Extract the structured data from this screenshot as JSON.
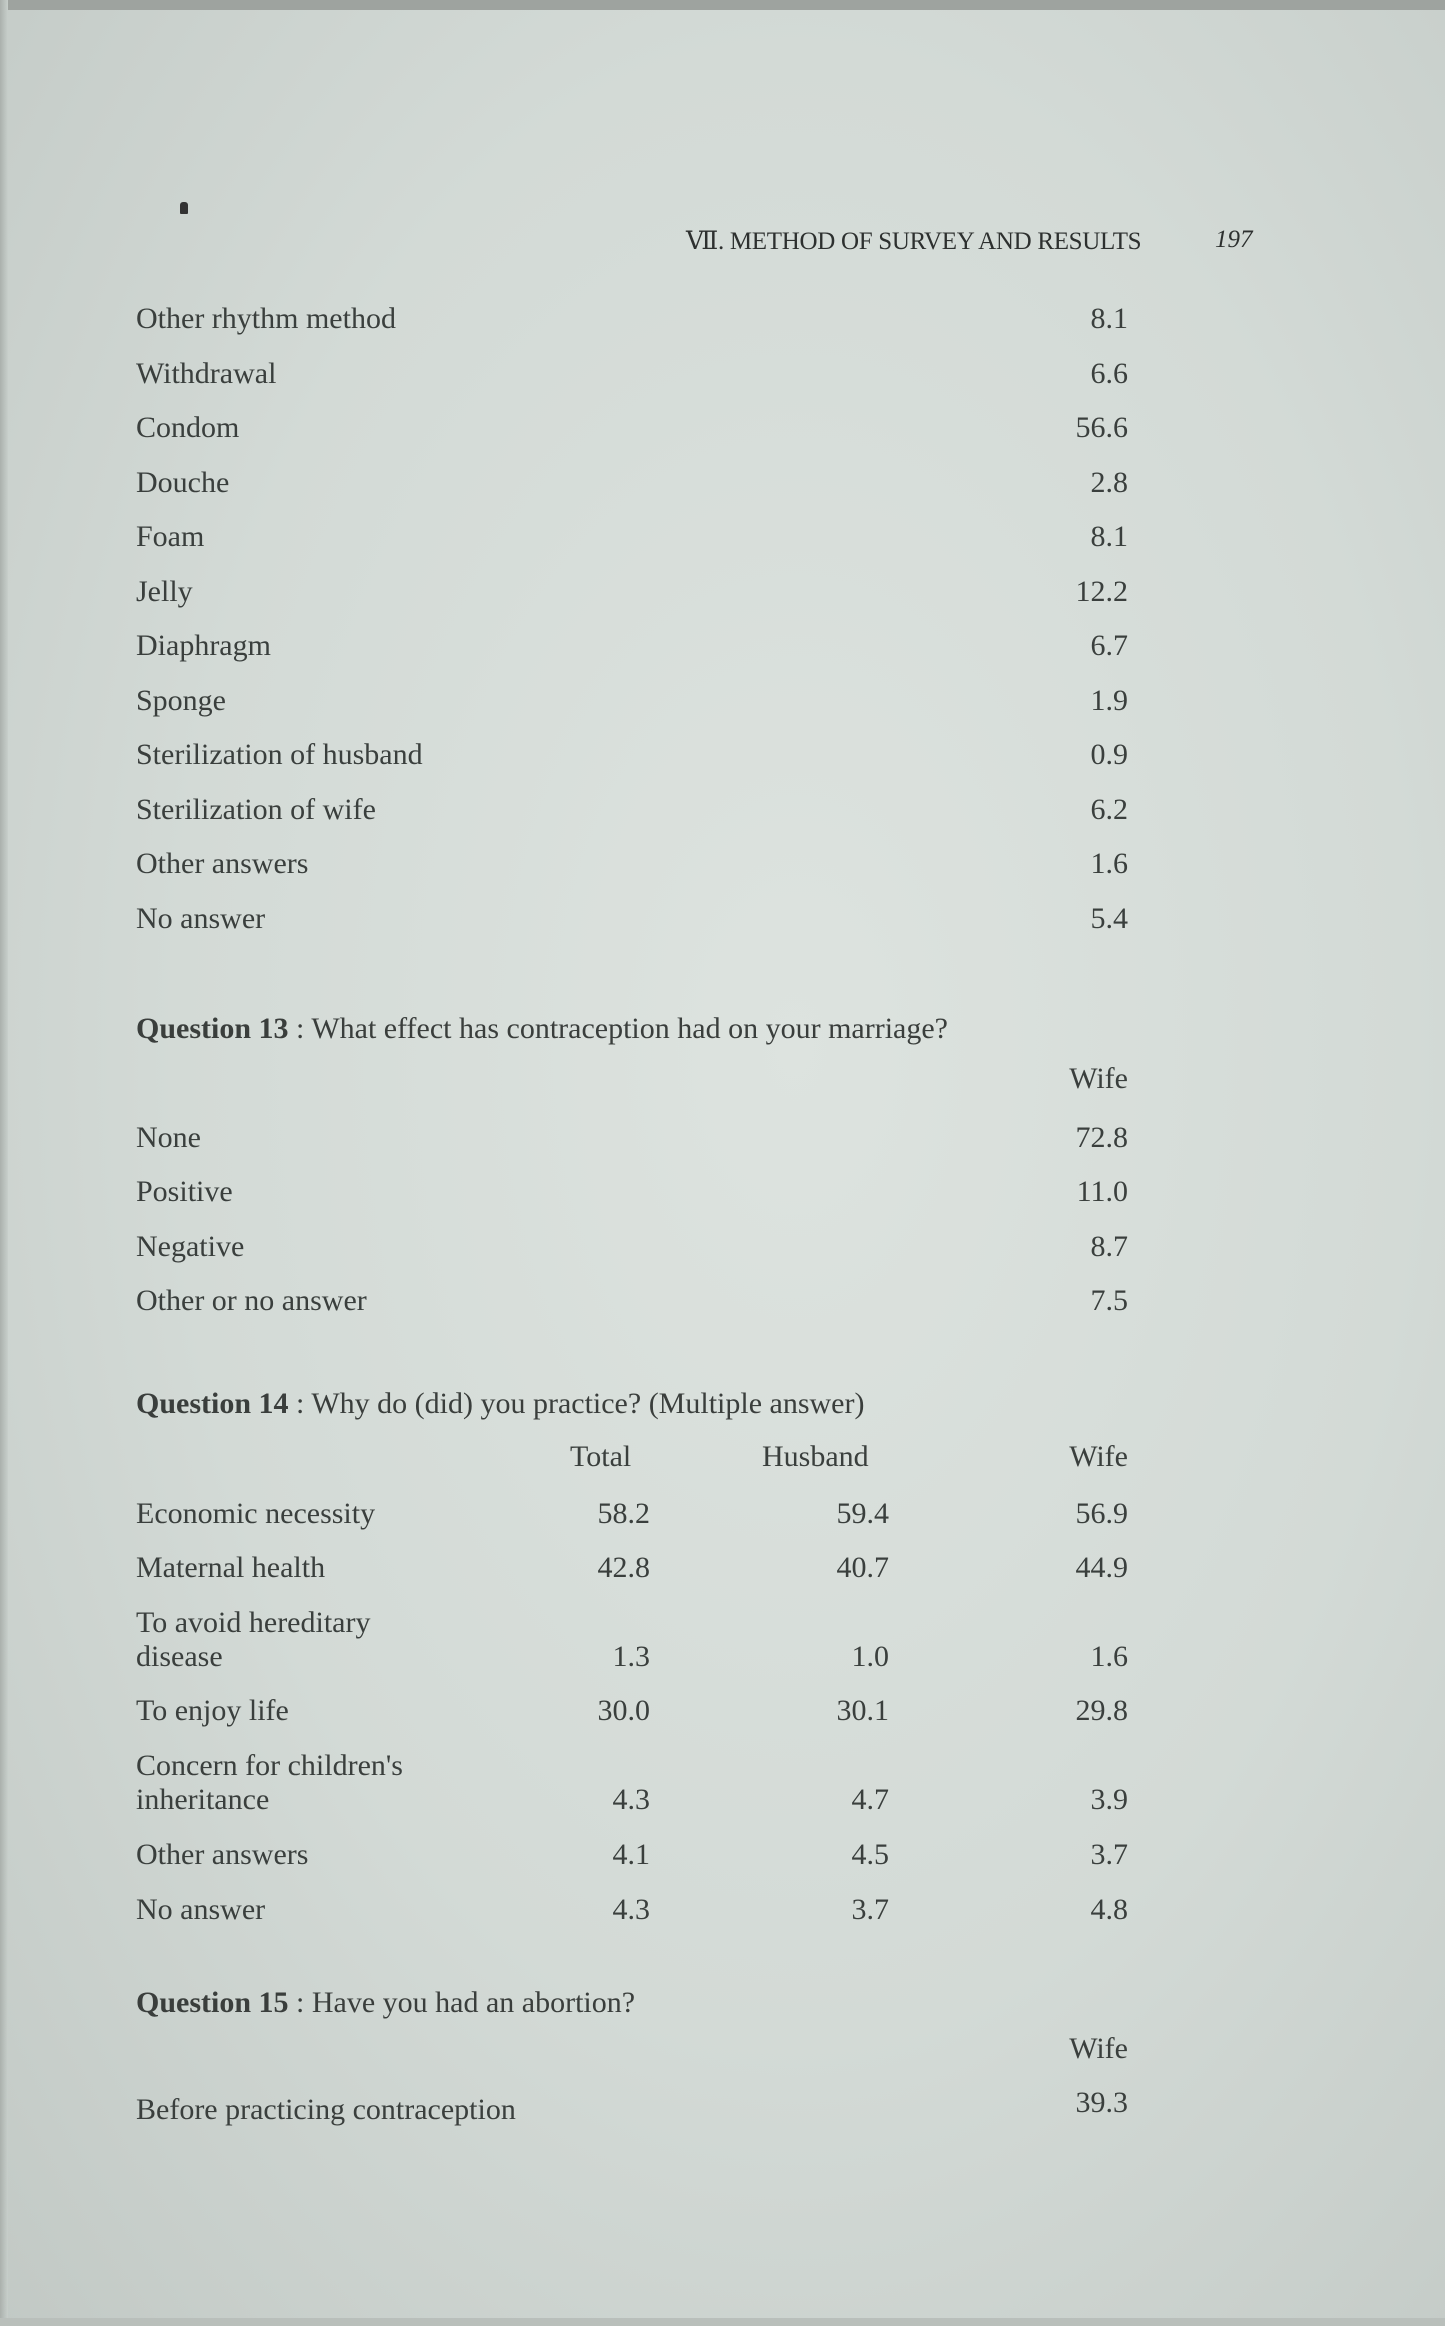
{
  "running_header": {
    "title": "Ⅶ. METHOD OF SURVEY AND RESULTS",
    "page_number": "197"
  },
  "methods_list": [
    {
      "label": "Other rhythm method",
      "value": "8.1"
    },
    {
      "label": "Withdrawal",
      "value": "6.6"
    },
    {
      "label": "Condom",
      "value": "56.6"
    },
    {
      "label": "Douche",
      "value": "2.8"
    },
    {
      "label": "Foam",
      "value": "8.1"
    },
    {
      "label": "Jelly",
      "value": "12.2"
    },
    {
      "label": "Diaphragm",
      "value": "6.7"
    },
    {
      "label": "Sponge",
      "value": "1.9"
    },
    {
      "label": "Sterilization of husband",
      "value": "0.9"
    },
    {
      "label": "Sterilization of wife",
      "value": "6.2"
    },
    {
      "label": "Other answers",
      "value": "1.6"
    },
    {
      "label": "No answer",
      "value": "5.4"
    }
  ],
  "q13": {
    "number": "Question 13",
    "text": ": What effect has contraception had on your marriage?",
    "column": "Wife",
    "rows": [
      {
        "label": "None",
        "value": "72.8"
      },
      {
        "label": "Positive",
        "value": "11.0"
      },
      {
        "label": "Negative",
        "value": "8.7"
      },
      {
        "label": "Other or no answer",
        "value": "7.5"
      }
    ]
  },
  "q14": {
    "number": "Question 14",
    "text": ": Why do (did) you practice? (Multiple answer)",
    "columns": [
      "Total",
      "Husband",
      "Wife"
    ],
    "rows": [
      {
        "label": [
          "Economic necessity"
        ],
        "values": [
          "58.2",
          "59.4",
          "56.9"
        ]
      },
      {
        "label": [
          "Maternal health"
        ],
        "values": [
          "42.8",
          "40.7",
          "44.9"
        ]
      },
      {
        "label": [
          "To avoid hereditary",
          "disease"
        ],
        "values": [
          "1.3",
          "1.0",
          "1.6"
        ]
      },
      {
        "label": [
          "To enjoy life"
        ],
        "values": [
          "30.0",
          "30.1",
          "29.8"
        ]
      },
      {
        "label": [
          "Concern for children's",
          "inheritance"
        ],
        "values": [
          "4.3",
          "4.7",
          "3.9"
        ]
      },
      {
        "label": [
          "Other answers"
        ],
        "values": [
          "4.1",
          "4.5",
          "3.7"
        ]
      },
      {
        "label": [
          "No answer"
        ],
        "values": [
          "4.3",
          "3.7",
          "4.8"
        ]
      }
    ]
  },
  "q15": {
    "number": "Question 15",
    "text": ": Have you had an abortion?",
    "column": "Wife",
    "rows": [
      {
        "label": "Before practicing contraception",
        "value": "39.3"
      }
    ]
  }
}
